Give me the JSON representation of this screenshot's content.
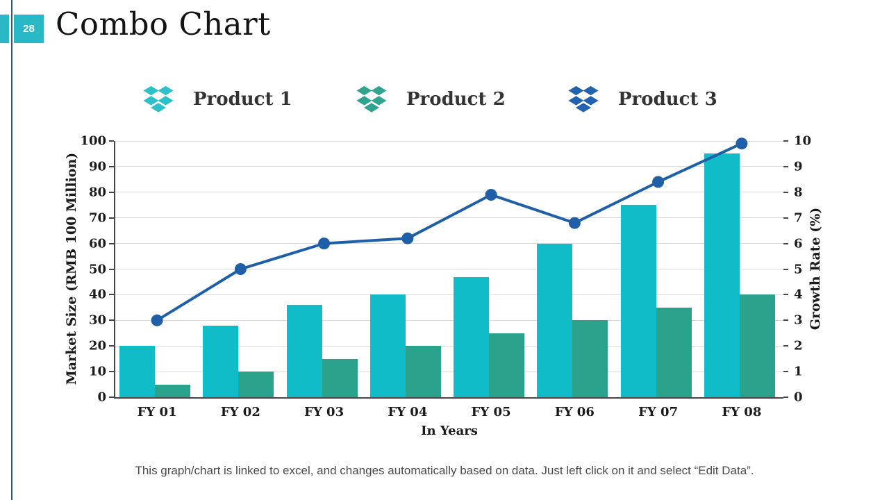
{
  "slide": {
    "page_number": "28",
    "title": "Combo Chart",
    "footer": "This graph/chart is linked to excel, and changes automatically based on data. Just left click on it and select “Edit Data”.",
    "accent_color": "#29b9c6",
    "border_line_color": "#2e6069"
  },
  "legend": {
    "position": "top",
    "items": [
      {
        "label": "Product 1",
        "icon": "dropbox-logo-icon",
        "color": "#2cc0cb"
      },
      {
        "label": "Product 2",
        "icon": "dropbox-logo-icon",
        "color": "#30a48e"
      },
      {
        "label": "Product 3",
        "icon": "dropbox-logo-icon",
        "color": "#2263b0"
      }
    ]
  },
  "chart_data": {
    "type": "combo bar+line",
    "categories": [
      "FY 01",
      "FY 02",
      "FY 03",
      "FY 04",
      "FY 05",
      "FY 06",
      "FY 07",
      "FY 08"
    ],
    "series": [
      {
        "name": "Product 1",
        "type": "bar",
        "axis": "left",
        "color": "#10bcc7",
        "values": [
          20,
          28,
          36,
          40,
          47,
          60,
          75,
          95
        ]
      },
      {
        "name": "Product 2",
        "type": "bar",
        "axis": "left",
        "color": "#2ba28c",
        "values": [
          5,
          10,
          15,
          20,
          25,
          30,
          35,
          40
        ]
      },
      {
        "name": "Product 3",
        "type": "line",
        "axis": "right",
        "color": "#1f5fa8",
        "values": [
          3,
          5,
          6,
          6.2,
          7.9,
          6.8,
          8.4,
          9.9
        ]
      }
    ],
    "xlabel": "In Years",
    "ylabel_left": "Market Size (RMB 100 Million)",
    "ylabel_right": "Growth Rate (%)",
    "ylim_left": [
      0,
      100
    ],
    "ylim_right": [
      0,
      10
    ],
    "yticks_left": [
      0,
      10,
      20,
      30,
      40,
      50,
      60,
      70,
      80,
      90,
      100
    ],
    "yticks_right": [
      0,
      1,
      2,
      3,
      4,
      5,
      6,
      7,
      8,
      9,
      10
    ],
    "grid": "horizontal",
    "gridline_color": "#d9d9d9",
    "legend_position": "top"
  }
}
